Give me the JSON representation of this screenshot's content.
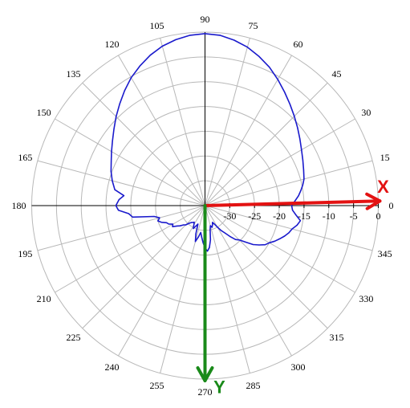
{
  "chart_data": {
    "type": "polar-line",
    "angle_unit": "degrees",
    "radial_unit": "dB",
    "rlim": [
      -35,
      0
    ],
    "angle_ticks": [
      "0",
      "15",
      "30",
      "45",
      "60",
      "75",
      "90",
      "105",
      "120",
      "135",
      "150",
      "165",
      "180",
      "195",
      "210",
      "225",
      "240",
      "255",
      "270",
      "285",
      "300",
      "315",
      "330",
      "345"
    ],
    "radial_ticks": [
      {
        "value": -30,
        "label": "-30"
      },
      {
        "value": -25,
        "label": "-25"
      },
      {
        "value": -20,
        "label": "-20"
      },
      {
        "value": -15,
        "label": "-15"
      },
      {
        "value": -10,
        "label": "-10"
      },
      {
        "value": -5,
        "label": "-5"
      },
      {
        "value": 0,
        "label": "0"
      }
    ],
    "grid": true,
    "series": [
      {
        "color": "#1a1acc",
        "points": [
          [
            0,
            -17.5
          ],
          [
            3,
            -16.8
          ],
          [
            6,
            -16.0
          ],
          [
            9,
            -15.4
          ],
          [
            12,
            -14.8
          ],
          [
            15,
            -14.3
          ],
          [
            20,
            -13.8
          ],
          [
            25,
            -13.2
          ],
          [
            30,
            -12.5
          ],
          [
            35,
            -11.6
          ],
          [
            40,
            -10.6
          ],
          [
            45,
            -9.5
          ],
          [
            50,
            -8.3
          ],
          [
            55,
            -7.0
          ],
          [
            60,
            -5.6
          ],
          [
            65,
            -4.2
          ],
          [
            70,
            -3.0
          ],
          [
            75,
            -1.9
          ],
          [
            80,
            -1.1
          ],
          [
            85,
            -0.5
          ],
          [
            90,
            -0.3
          ],
          [
            95,
            -0.5
          ],
          [
            100,
            -1.0
          ],
          [
            105,
            -1.7
          ],
          [
            110,
            -2.7
          ],
          [
            115,
            -3.9
          ],
          [
            120,
            -5.2
          ],
          [
            125,
            -6.7
          ],
          [
            130,
            -8.2
          ],
          [
            135,
            -9.6
          ],
          [
            140,
            -11.0
          ],
          [
            145,
            -12.2
          ],
          [
            150,
            -13.2
          ],
          [
            155,
            -14.1
          ],
          [
            160,
            -14.8
          ],
          [
            165,
            -15.6
          ],
          [
            170,
            -16.5
          ],
          [
            173,
            -18.5
          ],
          [
            176,
            -17.6
          ],
          [
            180,
            -17.0
          ],
          [
            183,
            -17.5
          ],
          [
            186,
            -19.5
          ],
          [
            189,
            -20.2
          ],
          [
            192,
            -24.5
          ],
          [
            195,
            -25.5
          ],
          [
            198,
            -25.0
          ],
          [
            201,
            -25.6
          ],
          [
            204,
            -26.5
          ],
          [
            207,
            -26.8
          ],
          [
            210,
            -27.5
          ],
          [
            213,
            -27.2
          ],
          [
            216,
            -28.0
          ],
          [
            219,
            -28.5
          ],
          [
            222,
            -29.2
          ],
          [
            225,
            -29.5
          ],
          [
            228,
            -30.2
          ],
          [
            231,
            -30.6
          ],
          [
            234,
            -30.8
          ],
          [
            237,
            -31.0
          ],
          [
            240,
            -30.5
          ],
          [
            243,
            -29.8
          ],
          [
            246,
            -30.5
          ],
          [
            249,
            -31.0
          ],
          [
            252,
            -29.0
          ],
          [
            255,
            -27.5
          ],
          [
            258,
            -28.5
          ],
          [
            261,
            -29.5
          ],
          [
            264,
            -28.6
          ],
          [
            267,
            -27.5
          ],
          [
            270,
            -26.5
          ],
          [
            273,
            -25.8
          ],
          [
            276,
            -26.5
          ],
          [
            279,
            -28.0
          ],
          [
            282,
            -30.0
          ],
          [
            285,
            -30.8
          ],
          [
            288,
            -30.4
          ],
          [
            291,
            -30.8
          ],
          [
            294,
            -31.3
          ],
          [
            297,
            -30.8
          ],
          [
            300,
            -30.0
          ],
          [
            303,
            -29.0
          ],
          [
            306,
            -28.2
          ],
          [
            309,
            -27.0
          ],
          [
            312,
            -25.8
          ],
          [
            315,
            -25.2
          ],
          [
            318,
            -24.0
          ],
          [
            321,
            -22.5
          ],
          [
            324,
            -21.5
          ],
          [
            327,
            -20.5
          ],
          [
            330,
            -20.0
          ],
          [
            333,
            -19.2
          ],
          [
            336,
            -18.5
          ],
          [
            339,
            -17.8
          ],
          [
            342,
            -17.2
          ],
          [
            345,
            -16.8
          ],
          [
            348,
            -16.0
          ],
          [
            351,
            -15.5
          ],
          [
            354,
            -16.5
          ],
          [
            357,
            -17.3
          ],
          [
            360,
            -17.5
          ]
        ]
      }
    ],
    "axis_arrows": [
      {
        "name": "X",
        "angle": 1.5,
        "color": "#e31212"
      },
      {
        "name": "Y",
        "angle": 270,
        "color": "#1a8a1a"
      }
    ]
  }
}
